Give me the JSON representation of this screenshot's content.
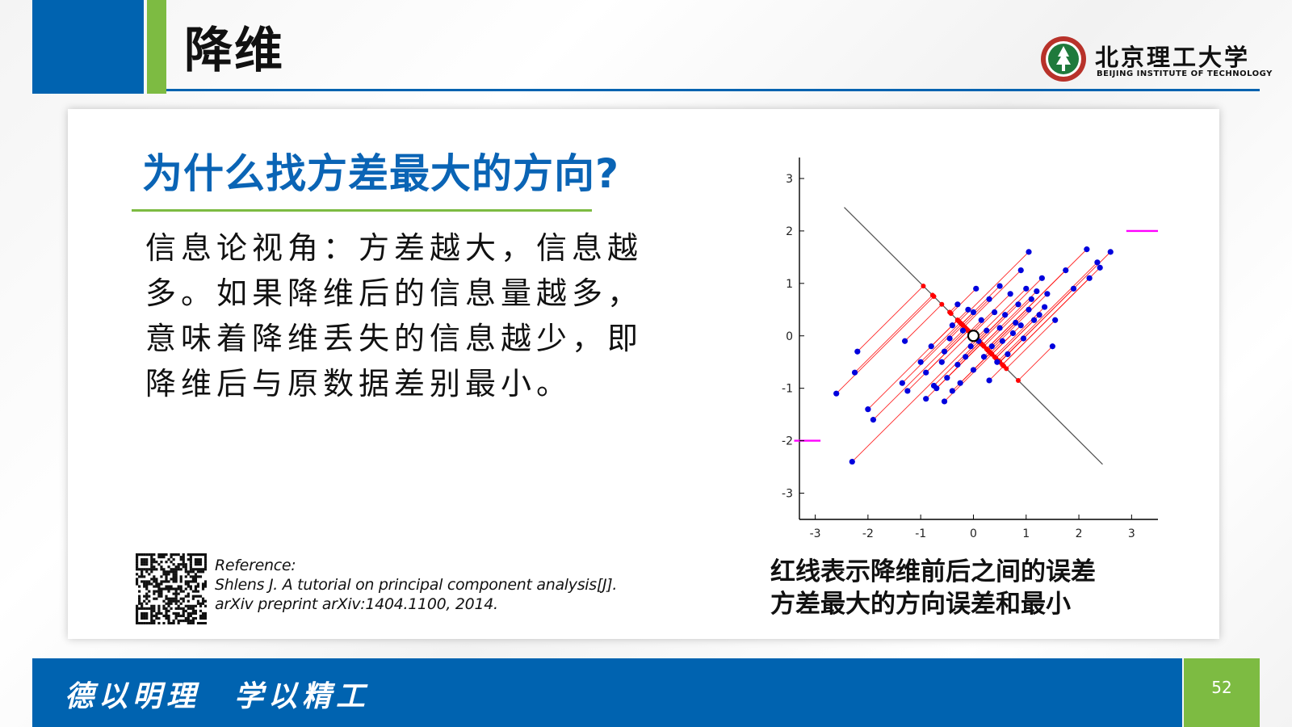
{
  "slide": {
    "title": "降维",
    "page_number": "52",
    "colors": {
      "blue": "#0063b0",
      "green": "#7dbb42",
      "heading_blue": "#0a64b5"
    }
  },
  "logo": {
    "name_cn": "北京理工大学",
    "name_en": "BEIJING INSTITUTE OF TECHNOLOGY",
    "icon": "university-seal-icon"
  },
  "content": {
    "heading": "为什么找方差最大的方向?",
    "body": "信息论视角：方差越大，信息越多。如果降维后的信息量越多，意味着降维丢失的信息越少，即降维后与原数据差别最小。",
    "reference": {
      "label": "Reference:",
      "line1": "Shlens J. A tutorial on principal component analysis[J].",
      "line2": "arXiv preprint arXiv:1404.1100, 2014."
    },
    "qr_icon": "qr-code-icon",
    "caption_line1": "红线表示降维前后之间的误差",
    "caption_line2": "方差最大的方向误差和最小"
  },
  "chart_data": {
    "type": "scatter",
    "title": "",
    "xlabel": "",
    "ylabel": "",
    "xlim": [
      -3.3,
      3.5
    ],
    "ylim": [
      -3.5,
      3.4
    ],
    "xticks": [
      -3,
      -2,
      -1,
      0,
      1,
      2,
      3
    ],
    "yticks": [
      3,
      2,
      1,
      0,
      -1,
      -2,
      -3
    ],
    "grid": false,
    "legend": "none",
    "origin_marker": [
      0,
      0
    ],
    "principal_axis_segments": [
      [
        -3.4,
        -2.0,
        -2.9,
        -2.0
      ],
      [
        2.9,
        2.0,
        3.5,
        2.0
      ]
    ],
    "orthogonal_axis": [
      [
        -2.45,
        2.45
      ],
      [
        2.45,
        -2.45
      ]
    ],
    "point_color": "#0000dd",
    "projection_color": "#ff0000",
    "axis_color": "#ff00ff",
    "points": [
      [
        -2.6,
        -1.1
      ],
      [
        -2.2,
        -0.3
      ],
      [
        -2.25,
        -0.7
      ],
      [
        -2.0,
        -1.4
      ],
      [
        -1.9,
        -1.6
      ],
      [
        -2.3,
        -2.4
      ],
      [
        -1.3,
        -0.1
      ],
      [
        -1.35,
        -0.9
      ],
      [
        -1.25,
        -1.05
      ],
      [
        -1.0,
        -0.5
      ],
      [
        -0.9,
        -0.7
      ],
      [
        -0.9,
        -1.2
      ],
      [
        -0.8,
        -0.2
      ],
      [
        -0.75,
        -0.95
      ],
      [
        -0.7,
        -1.0
      ],
      [
        -0.6,
        -0.5
      ],
      [
        -0.55,
        -0.3
      ],
      [
        -0.55,
        -1.25
      ],
      [
        -0.5,
        -0.8
      ],
      [
        -0.45,
        -0.05
      ],
      [
        -0.4,
        0.2
      ],
      [
        -0.4,
        -1.05
      ],
      [
        -0.3,
        -0.55
      ],
      [
        -0.3,
        0.6
      ],
      [
        -0.25,
        -0.9
      ],
      [
        -0.2,
        0.1
      ],
      [
        -0.15,
        -0.4
      ],
      [
        -0.1,
        0.5
      ],
      [
        -0.05,
        -0.2
      ],
      [
        0.0,
        0.45
      ],
      [
        0.0,
        -0.65
      ],
      [
        0.05,
        0.9
      ],
      [
        0.1,
        -0.1
      ],
      [
        0.15,
        0.3
      ],
      [
        0.2,
        -0.4
      ],
      [
        0.25,
        0.1
      ],
      [
        0.3,
        0.7
      ],
      [
        0.3,
        -0.85
      ],
      [
        0.35,
        -0.2
      ],
      [
        0.4,
        0.45
      ],
      [
        0.45,
        -0.5
      ],
      [
        0.5,
        0.15
      ],
      [
        0.5,
        0.95
      ],
      [
        0.55,
        -0.1
      ],
      [
        0.6,
        0.4
      ],
      [
        0.65,
        -0.35
      ],
      [
        0.7,
        0.8
      ],
      [
        0.75,
        0.05
      ],
      [
        0.8,
        0.25
      ],
      [
        0.85,
        0.6
      ],
      [
        0.9,
        0.2
      ],
      [
        0.95,
        -0.05
      ],
      [
        1.0,
        0.9
      ],
      [
        1.05,
        0.5
      ],
      [
        1.1,
        0.7
      ],
      [
        1.15,
        0.3
      ],
      [
        1.2,
        0.85
      ],
      [
        1.25,
        0.4
      ],
      [
        1.3,
        1.1
      ],
      [
        1.35,
        0.55
      ],
      [
        1.4,
        0.8
      ],
      [
        1.5,
        -0.2
      ],
      [
        1.55,
        0.3
      ],
      [
        0.9,
        1.25
      ],
      [
        1.05,
        1.6
      ],
      [
        1.75,
        1.25
      ],
      [
        1.9,
        0.9
      ],
      [
        2.15,
        1.65
      ],
      [
        2.2,
        1.1
      ],
      [
        2.35,
        1.4
      ],
      [
        2.4,
        1.3
      ],
      [
        2.6,
        1.6
      ]
    ]
  }
}
